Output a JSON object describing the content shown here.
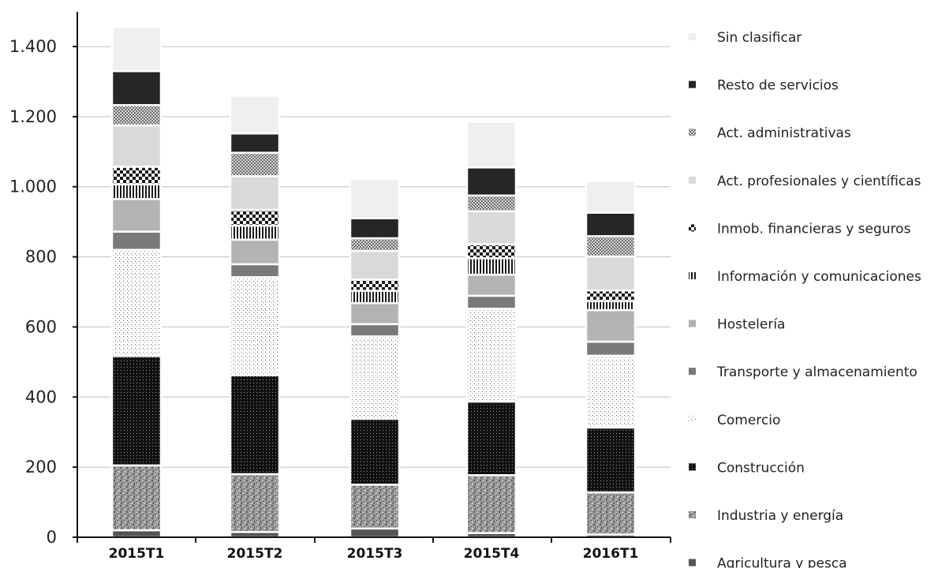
{
  "chart_data": {
    "type": "bar",
    "stacked": true,
    "categories": [
      "2015T1",
      "2015T2",
      "2015T3",
      "2015T4",
      "2016T1"
    ],
    "ylim": [
      0,
      1400
    ],
    "yticks": [
      0,
      200,
      400,
      600,
      800,
      1000,
      1200,
      1400
    ],
    "ytick_labels": [
      "0",
      "200",
      "400",
      "600",
      "800",
      "1.000",
      "1.200",
      "1.400"
    ],
    "grid": true,
    "legend_position": "right",
    "series": [
      {
        "name": "Agricultura y pesca",
        "values": [
          20,
          15,
          25,
          12,
          8
        ],
        "color": "#555555",
        "pattern": "solid-dark"
      },
      {
        "name": "Industria y energía",
        "values": [
          185,
          165,
          125,
          165,
          120
        ],
        "color": "#8a8a8a",
        "pattern": "granite"
      },
      {
        "name": "Construcción",
        "values": [
          312,
          282,
          188,
          210,
          185
        ],
        "color": "#111111",
        "pattern": "dots-on-black"
      },
      {
        "name": "Comercio",
        "values": [
          303,
          280,
          235,
          265,
          205
        ],
        "color": "#ffffff",
        "pattern": "sparse-dots"
      },
      {
        "name": "Transporte y almacenamiento",
        "values": [
          52,
          37,
          35,
          37,
          40
        ],
        "color": "#7a7a7a",
        "pattern": "solid-mid"
      },
      {
        "name": "Hostelería",
        "values": [
          93,
          70,
          60,
          60,
          90
        ],
        "color": "#b3b3b3",
        "pattern": "solid-light"
      },
      {
        "name": "Información y comunicaciones",
        "values": [
          42,
          40,
          35,
          47,
          26
        ],
        "color": "#222222",
        "pattern": "vertical-lines"
      },
      {
        "name": "Inmob. financieras y seguros",
        "values": [
          50,
          45,
          32,
          40,
          30
        ],
        "color": "#222222",
        "pattern": "checker"
      },
      {
        "name": "Act. profesionales y científicas",
        "values": [
          118,
          96,
          82,
          94,
          97
        ],
        "color": "#d9d9d9",
        "pattern": "solid-pale"
      },
      {
        "name": "Act. administrativas",
        "values": [
          58,
          67,
          36,
          45,
          58
        ],
        "color": "#9a9a9a",
        "pattern": "crosshatch"
      },
      {
        "name": "Resto de servicios",
        "values": [
          97,
          55,
          57,
          80,
          67
        ],
        "color": "#262626",
        "pattern": "solid-black"
      },
      {
        "name": "Sin clasificar",
        "values": [
          125,
          108,
          112,
          130,
          90
        ],
        "color": "#efefef",
        "pattern": "solid-near-white"
      }
    ]
  }
}
